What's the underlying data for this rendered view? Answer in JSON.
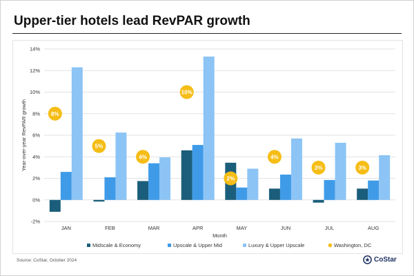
{
  "header": {
    "title": "Upper-tier hotels lead RevPAR growth"
  },
  "footer": {
    "source": "Source: CoStar, October 2024",
    "logo_text": "CoStar"
  },
  "colors": {
    "midscale": "#1b5e7b",
    "upscale": "#3f9be8",
    "luxury": "#8cc4f5",
    "washington": "#f5bd16",
    "grid": "#d9d9d9"
  },
  "chart_data": {
    "type": "bar",
    "title": "Upper-tier hotels lead RevPAR growth",
    "xlabel": "Month",
    "ylabel": "Year-over-year RevPAR growth",
    "categories": [
      "JAN",
      "FEB",
      "MAR",
      "APR",
      "MAY",
      "JUN",
      "JUL",
      "AUG"
    ],
    "ylim": [
      -2,
      14
    ],
    "yticks": [
      -2,
      0,
      2,
      4,
      6,
      8,
      10,
      12,
      14
    ],
    "ytick_labels": [
      "-2%",
      "0%",
      "2%",
      "4%",
      "6%",
      "8%",
      "10%",
      "12%",
      "14%"
    ],
    "grid": true,
    "legend": "bottom",
    "series": [
      {
        "name": "Midscale & Economy",
        "values": [
          -1.1,
          -0.15,
          1.75,
          4.6,
          3.45,
          1.05,
          -0.25,
          1.05
        ]
      },
      {
        "name": "Upscale & Upper Mid",
        "values": [
          2.6,
          2.1,
          3.4,
          5.1,
          1.15,
          2.35,
          1.85,
          1.8
        ]
      },
      {
        "name": "Luxury & Upper Upscale",
        "values": [
          12.3,
          6.25,
          3.95,
          13.3,
          2.9,
          5.7,
          5.3,
          4.15
        ]
      }
    ],
    "markers": {
      "name": "Washington, DC",
      "values": [
        8,
        5,
        4,
        10,
        2,
        4,
        3,
        3
      ],
      "labels": [
        "8%",
        "5%",
        "4%",
        "10%",
        "2%",
        "4%",
        "3%",
        "3%"
      ]
    }
  }
}
